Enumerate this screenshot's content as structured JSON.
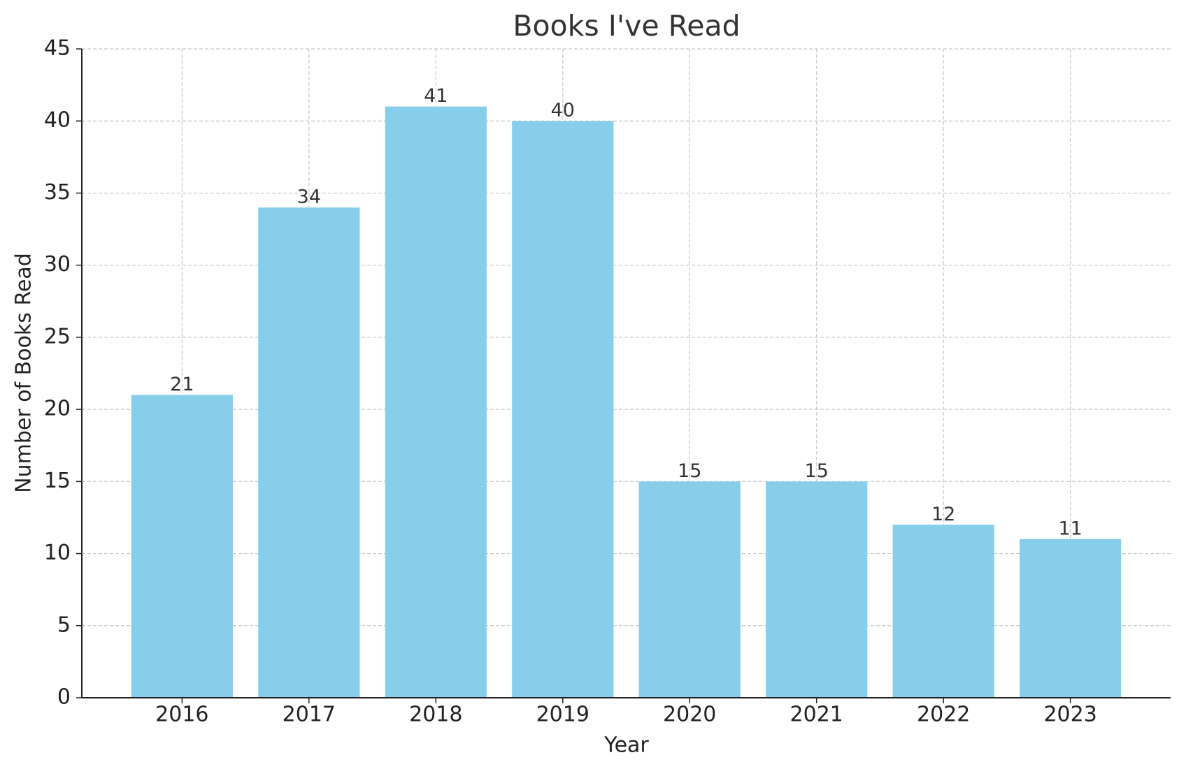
{
  "chart_data": {
    "type": "bar",
    "title": "Books I've Read",
    "x_label": "Year",
    "y_label": "Number of Books Read",
    "categories": [
      "2016",
      "2017",
      "2018",
      "2019",
      "2020",
      "2021",
      "2022",
      "2023"
    ],
    "values": [
      21,
      34,
      41,
      40,
      15,
      15,
      12,
      11
    ],
    "color": "#87ceeb",
    "ylim": [
      0,
      45
    ],
    "yticks": [
      0,
      5,
      10,
      15,
      20,
      25,
      30,
      35,
      40,
      45
    ],
    "grid": true
  }
}
